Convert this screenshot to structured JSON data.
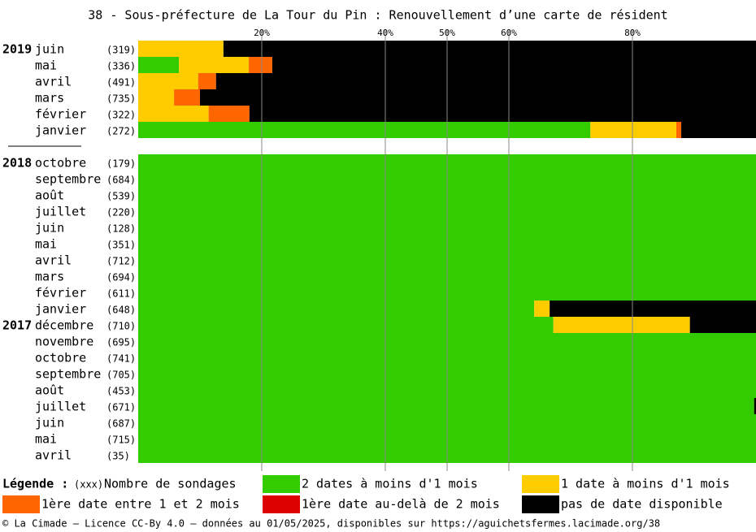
{
  "chart_data": {
    "type": "stacked-barh",
    "title": "38 - Sous-préfecture de La Tour du Pin : Renouvellement d’une carte de résident",
    "categories": [
      "juin",
      "mai",
      "avril",
      "mars",
      "février",
      "janvier",
      null,
      "octobre",
      "septembre",
      "août",
      "juillet",
      "juin",
      "mai",
      "avril",
      "mars",
      "février",
      "janvier",
      "décembre",
      "novembre",
      "octobre",
      "septembre",
      "août",
      "juillet",
      "juin",
      "mai",
      "avril"
    ],
    "year_labels": [
      "2019",
      null,
      null,
      null,
      null,
      null,
      null,
      "2018",
      null,
      null,
      null,
      null,
      null,
      null,
      null,
      null,
      null,
      "2017",
      null,
      null,
      null,
      null,
      null,
      null,
      null,
      null
    ],
    "count_labels": [
      "(319)",
      "(336)",
      "(491)",
      "(735)",
      "(322)",
      "(272)",
      null,
      "(179)",
      "(684)",
      "(539)",
      "(220)",
      "(128)",
      "(351)",
      "(712)",
      "(694)",
      "(611)",
      "(648)",
      "(710)",
      "(695)",
      "(741)",
      "(705)",
      "(453)",
      "(671)",
      "(687)",
      "(715)",
      "(35)"
    ],
    "series": [
      {
        "name": "2 dates à moins d'1 mois",
        "color": "#33cc00",
        "values": [
          0,
          6.6,
          0,
          0,
          0,
          73.2,
          null,
          100,
          100,
          100,
          100,
          100,
          100,
          100,
          100,
          100,
          64.1,
          67.2,
          100,
          100,
          100,
          100,
          99.7,
          100,
          100,
          100
        ]
      },
      {
        "name": "1 date à moins d'1 mois",
        "color": "#ffcc00",
        "values": [
          13.8,
          11.3,
          9.7,
          5.8,
          11.4,
          13.9,
          null,
          0,
          0,
          0,
          0,
          0,
          0,
          0,
          0,
          0,
          2.5,
          22.1,
          0,
          0,
          0,
          0,
          0,
          0,
          0,
          0
        ]
      },
      {
        "name": "1ère date entre 1 et 2 mois",
        "color": "#ff6600",
        "values": [
          0,
          3.8,
          2.9,
          4.2,
          6.6,
          0.8,
          null,
          0,
          0,
          0,
          0,
          0,
          0,
          0,
          0,
          0,
          0,
          0,
          0,
          0,
          0,
          0,
          0,
          0,
          0,
          0
        ]
      },
      {
        "name": "1ère date au-delà de 2 mois",
        "color": "#dd0000",
        "values": [
          0,
          0,
          0,
          0,
          0,
          0,
          null,
          0,
          0,
          0,
          0,
          0,
          0,
          0,
          0,
          0,
          0,
          0,
          0,
          0,
          0,
          0,
          0,
          0,
          0,
          0
        ]
      },
      {
        "name": "pas de date disponible",
        "color": "#000000",
        "values": [
          86.2,
          78.3,
          87.4,
          90.0,
          82.0,
          12.1,
          null,
          0,
          0,
          0,
          0,
          0,
          0,
          0,
          0,
          0,
          33.4,
          10.7,
          0,
          0,
          0,
          0,
          0.3,
          0,
          0,
          0
        ]
      }
    ],
    "xlim": [
      0,
      100
    ],
    "xticks": [
      {
        "value": 20,
        "label": "20%"
      },
      {
        "value": 40,
        "label": "40%"
      },
      {
        "value": 50,
        "label": "50%"
      },
      {
        "value": 60,
        "label": "60%"
      },
      {
        "value": 80,
        "label": "80%"
      }
    ],
    "grid": true,
    "legend_title": "Légende :",
    "legend_count_key": "(xxx)",
    "legend_count_text": "Nombre de sondages",
    "source": "© La Cimade — Licence CC-By 4.0 — données au 01/05/2025, disponibles sur https://aguichetsfermes.lacimade.org/38"
  }
}
